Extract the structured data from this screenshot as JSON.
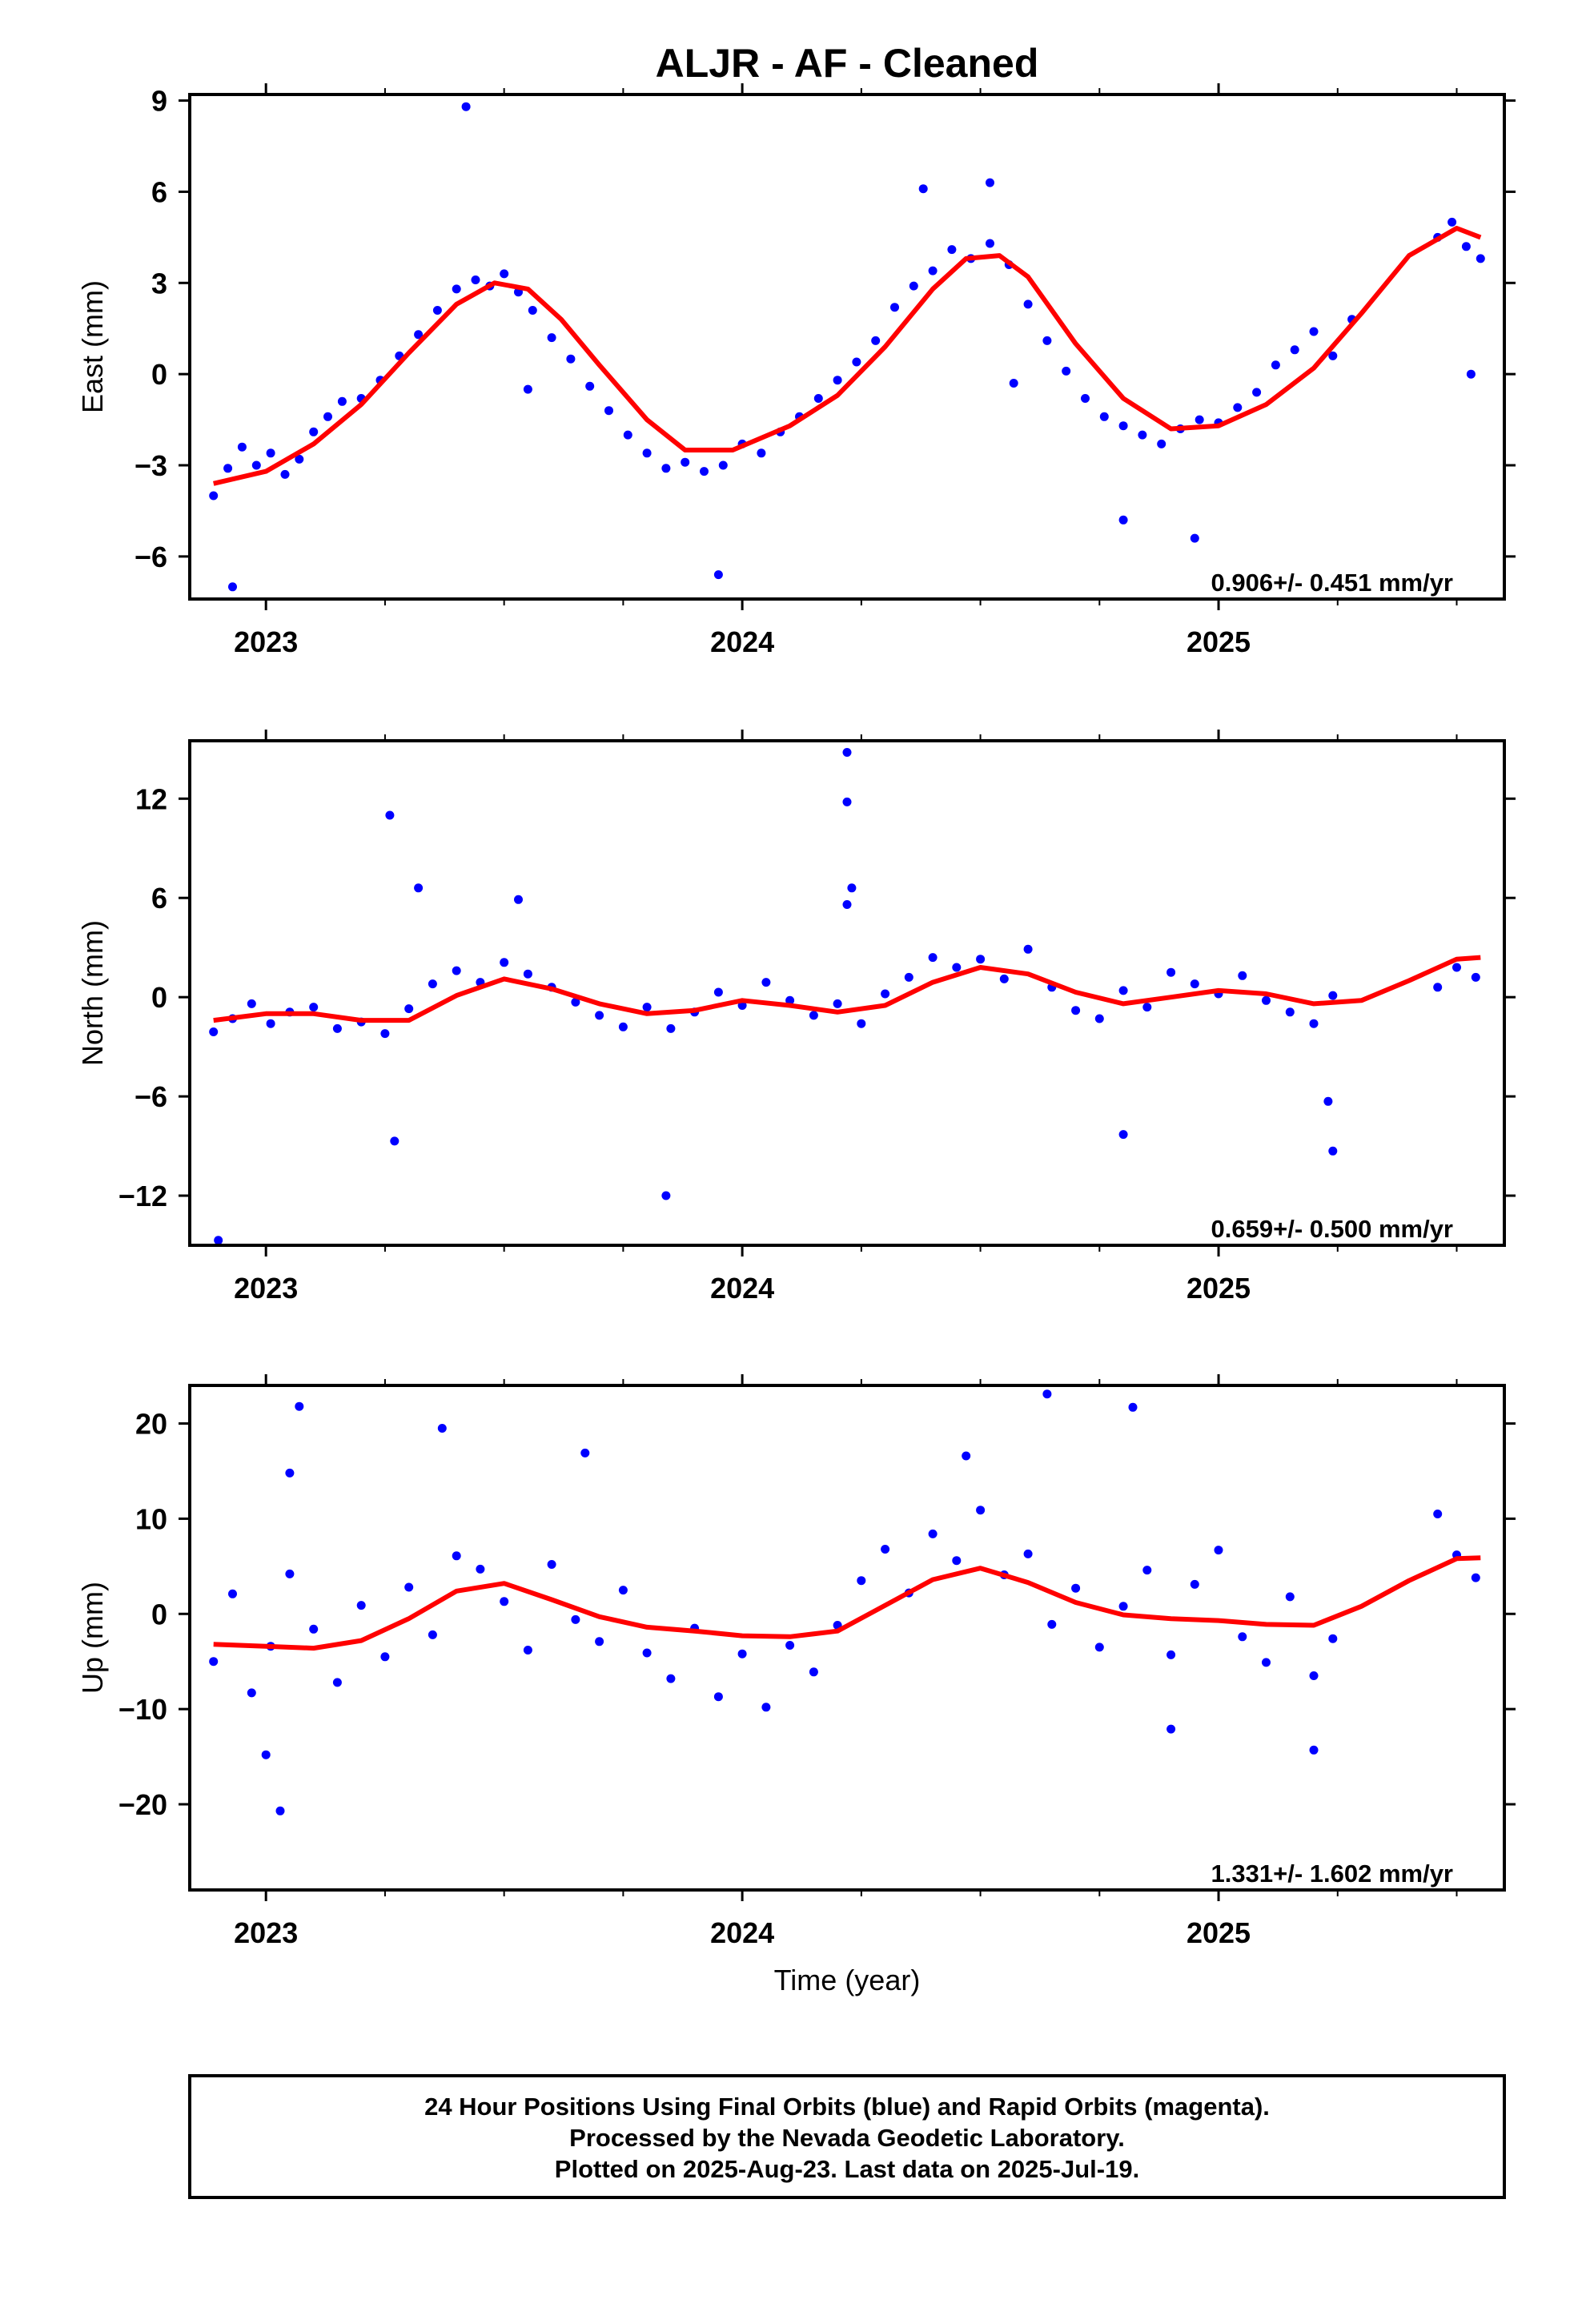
{
  "title": "ALJR  - AF - Cleaned",
  "xlabel": "Time (year)",
  "footer_lines": [
    "24 Hour Positions Using Final Orbits (blue) and Rapid Orbits (magenta).",
    "Processed by the Nevada Geodetic Laboratory.",
    "Plotted on 2025-Aug-23. Last data on 2025-Jul-19."
  ],
  "colors": {
    "points": "#0000ff",
    "fit": "#ff0000",
    "frame": "#000000"
  },
  "chart_data": [
    {
      "type": "scatter",
      "ylabel": "East (mm)",
      "rate_label": "0.906+/- 0.451 mm/yr",
      "x_ticks": [
        "2023",
        "2024",
        "2025"
      ],
      "y_ticks": [
        "9",
        "6",
        "3",
        "0",
        "−3",
        "−6"
      ],
      "xlim": [
        2022.84,
        2025.6
      ],
      "ylim": [
        -7.4,
        9.2
      ],
      "fit_x": [
        2022.89,
        2023.0,
        2023.1,
        2023.2,
        2023.3,
        2023.4,
        2023.48,
        2023.55,
        2023.62,
        2023.7,
        2023.8,
        2023.88,
        2023.98,
        2024.1,
        2024.2,
        2024.3,
        2024.4,
        2024.47,
        2024.54,
        2024.6,
        2024.7,
        2024.8,
        2024.9,
        2025.0,
        2025.1,
        2025.2,
        2025.3,
        2025.4,
        2025.5,
        2025.55
      ],
      "fit_y": [
        -3.6,
        -3.2,
        -2.3,
        -1.0,
        0.7,
        2.3,
        3.0,
        2.8,
        1.8,
        0.3,
        -1.5,
        -2.5,
        -2.5,
        -1.7,
        -0.7,
        0.9,
        2.8,
        3.8,
        3.9,
        3.2,
        1.0,
        -0.8,
        -1.8,
        -1.7,
        -1.0,
        0.2,
        2.0,
        3.9,
        4.8,
        4.5
      ],
      "points": {
        "x": [
          2022.89,
          2022.92,
          2022.95,
          2022.98,
          2023.01,
          2023.04,
          2023.07,
          2023.1,
          2023.13,
          2023.16,
          2023.2,
          2023.24,
          2023.28,
          2023.32,
          2023.36,
          2023.4,
          2023.44,
          2023.47,
          2023.5,
          2023.53,
          2023.56,
          2023.6,
          2023.64,
          2023.68,
          2023.72,
          2023.76,
          2023.8,
          2023.84,
          2023.88,
          2023.92,
          2023.96,
          2024.0,
          2024.04,
          2024.08,
          2024.12,
          2024.16,
          2024.2,
          2024.24,
          2024.28,
          2024.32,
          2024.36,
          2024.4,
          2024.44,
          2024.48,
          2024.52,
          2024.56,
          2024.6,
          2024.64,
          2024.68,
          2024.72,
          2024.76,
          2024.8,
          2024.84,
          2024.88,
          2024.92,
          2024.96,
          2025.0,
          2025.04,
          2025.08,
          2025.12,
          2025.16,
          2025.2,
          2025.24,
          2025.28,
          2025.46,
          2025.49,
          2025.52,
          2025.55,
          2023.42,
          2024.38,
          2024.52,
          2024.8,
          2023.95,
          2022.93,
          2023.55,
          2024.57,
          2024.95,
          2025.53
        ],
        "y": [
          -4.0,
          -3.1,
          -2.4,
          -3.0,
          -2.6,
          -3.3,
          -2.8,
          -1.9,
          -1.4,
          -0.9,
          -0.8,
          -0.2,
          0.6,
          1.3,
          2.1,
          2.8,
          3.1,
          2.9,
          3.3,
          2.7,
          2.1,
          1.2,
          0.5,
          -0.4,
          -1.2,
          -2.0,
          -2.6,
          -3.1,
          -2.9,
          -3.2,
          -3.0,
          -2.3,
          -2.6,
          -1.9,
          -1.4,
          -0.8,
          -0.2,
          0.4,
          1.1,
          2.2,
          2.9,
          3.4,
          4.1,
          3.8,
          4.3,
          3.6,
          2.3,
          1.1,
          0.1,
          -0.8,
          -1.4,
          -1.7,
          -2.0,
          -2.3,
          -1.8,
          -1.5,
          -1.6,
          -1.1,
          -0.6,
          0.3,
          0.8,
          1.4,
          0.6,
          1.8,
          4.5,
          5.0,
          4.2,
          3.8,
          8.8,
          6.1,
          6.3,
          -4.8,
          -6.6,
          -7.0,
          -0.5,
          -0.3,
          -5.4,
          0.0
        ]
      }
    },
    {
      "type": "scatter",
      "ylabel": "North (mm)",
      "rate_label": "0.659+/- 0.500 mm/yr",
      "x_ticks": [
        "2023",
        "2024",
        "2025"
      ],
      "y_ticks": [
        "12",
        "6",
        "0",
        "−6",
        "−12"
      ],
      "xlim": [
        2022.84,
        2025.6
      ],
      "ylim": [
        -15.0,
        15.5
      ],
      "fit_x": [
        2022.89,
        2023.0,
        2023.1,
        2023.2,
        2023.3,
        2023.4,
        2023.5,
        2023.6,
        2023.7,
        2023.8,
        2023.9,
        2024.0,
        2024.1,
        2024.2,
        2024.3,
        2024.4,
        2024.5,
        2024.6,
        2024.7,
        2024.8,
        2024.9,
        2025.0,
        2025.1,
        2025.2,
        2025.3,
        2025.4,
        2025.5,
        2025.55
      ],
      "fit_y": [
        -1.4,
        -1.0,
        -1.0,
        -1.4,
        -1.4,
        0.1,
        1.1,
        0.5,
        -0.4,
        -1.0,
        -0.8,
        -0.2,
        -0.5,
        -0.9,
        -0.5,
        0.9,
        1.8,
        1.4,
        0.3,
        -0.4,
        0.0,
        0.4,
        0.2,
        -0.4,
        -0.2,
        1.0,
        2.3,
        2.4
      ],
      "points": {
        "x": [
          2022.89,
          2022.93,
          2022.97,
          2023.01,
          2023.05,
          2023.1,
          2023.15,
          2023.2,
          2023.25,
          2023.3,
          2023.35,
          2023.4,
          2023.45,
          2023.5,
          2023.55,
          2023.6,
          2023.65,
          2023.7,
          2023.75,
          2023.8,
          2023.85,
          2023.9,
          2023.95,
          2024.0,
          2024.05,
          2024.1,
          2024.15,
          2024.2,
          2024.25,
          2024.3,
          2024.35,
          2024.4,
          2024.45,
          2024.5,
          2024.55,
          2024.6,
          2024.65,
          2024.7,
          2024.75,
          2024.8,
          2024.85,
          2024.9,
          2024.95,
          2025.0,
          2025.05,
          2025.1,
          2025.15,
          2025.2,
          2025.24,
          2025.46,
          2025.5,
          2025.54,
          2023.26,
          2024.22,
          2024.22,
          2024.23,
          2024.22,
          2023.27,
          2023.84,
          2022.9,
          2025.24,
          2025.23,
          2024.8,
          2023.32,
          2023.53
        ],
        "y": [
          -2.1,
          -1.3,
          -0.4,
          -1.6,
          -0.9,
          -0.6,
          -1.9,
          -1.5,
          -2.2,
          -0.7,
          0.8,
          1.6,
          0.9,
          2.1,
          1.4,
          0.6,
          -0.3,
          -1.1,
          -1.8,
          -0.6,
          -1.9,
          -0.9,
          0.3,
          -0.5,
          0.9,
          -0.2,
          -1.1,
          -0.4,
          -1.6,
          0.2,
          1.2,
          2.4,
          1.8,
          2.3,
          1.1,
          2.9,
          0.6,
          -0.8,
          -1.3,
          0.4,
          -0.6,
          1.5,
          0.8,
          0.2,
          1.3,
          -0.2,
          -0.9,
          -1.6,
          0.1,
          0.6,
          1.8,
          1.2,
          11.0,
          14.8,
          11.8,
          6.6,
          5.6,
          -8.7,
          -12.0,
          -14.7,
          -9.3,
          -6.3,
          -8.3,
          6.6,
          5.9
        ]
      }
    },
    {
      "type": "scatter",
      "ylabel": "Up (mm)",
      "rate_label": "1.331+/- 1.602 mm/yr",
      "x_ticks": [
        "2023",
        "2024",
        "2025"
      ],
      "y_ticks": [
        "20",
        "10",
        "0",
        "−10",
        "−20"
      ],
      "xlim": [
        2022.84,
        2025.6
      ],
      "ylim": [
        -29.0,
        24.0
      ],
      "fit_x": [
        2022.89,
        2023.0,
        2023.1,
        2023.2,
        2023.3,
        2023.4,
        2023.5,
        2023.6,
        2023.7,
        2023.8,
        2023.9,
        2024.0,
        2024.1,
        2024.2,
        2024.3,
        2024.4,
        2024.5,
        2024.6,
        2024.7,
        2024.8,
        2024.9,
        2025.0,
        2025.1,
        2025.2,
        2025.3,
        2025.4,
        2025.5,
        2025.55
      ],
      "fit_y": [
        -3.2,
        -3.4,
        -3.6,
        -2.8,
        -0.5,
        2.4,
        3.2,
        1.5,
        -0.3,
        -1.4,
        -1.8,
        -2.3,
        -2.4,
        -1.8,
        0.9,
        3.6,
        4.8,
        3.3,
        1.2,
        -0.1,
        -0.5,
        -0.7,
        -1.1,
        -1.2,
        0.8,
        3.5,
        5.8,
        5.9
      ],
      "points": {
        "x": [
          2022.89,
          2022.93,
          2022.97,
          2023.01,
          2023.05,
          2023.1,
          2023.15,
          2023.2,
          2023.25,
          2023.3,
          2023.35,
          2023.4,
          2023.45,
          2023.5,
          2023.55,
          2023.6,
          2023.65,
          2023.7,
          2023.75,
          2023.8,
          2023.85,
          2023.9,
          2023.95,
          2024.0,
          2024.05,
          2024.1,
          2024.15,
          2024.2,
          2024.25,
          2024.3,
          2024.35,
          2024.4,
          2024.45,
          2024.5,
          2024.55,
          2024.6,
          2024.65,
          2024.7,
          2024.75,
          2024.8,
          2024.85,
          2024.9,
          2024.95,
          2025.0,
          2025.05,
          2025.1,
          2025.15,
          2025.2,
          2025.24,
          2025.46,
          2025.5,
          2025.54,
          2023.07,
          2023.37,
          2023.67,
          2024.64,
          2024.82,
          2024.47,
          2023.03,
          2023.0,
          2024.9,
          2025.2,
          2023.05
        ],
        "y": [
          -5.0,
          2.1,
          -8.3,
          -3.4,
          4.2,
          -1.6,
          -7.2,
          0.9,
          -4.5,
          2.8,
          -2.2,
          6.1,
          4.7,
          1.3,
          -3.8,
          5.2,
          -0.6,
          -2.9,
          2.5,
          -4.1,
          -6.8,
          -1.5,
          -8.7,
          -4.2,
          -9.8,
          -3.3,
          -6.1,
          -1.2,
          3.5,
          6.8,
          2.2,
          8.4,
          5.6,
          10.9,
          4.1,
          6.3,
          -1.1,
          2.7,
          -3.5,
          0.8,
          4.6,
          -4.3,
          3.1,
          6.7,
          -2.4,
          -5.1,
          1.8,
          -6.5,
          -2.6,
          10.5,
          6.2,
          3.8,
          21.8,
          19.5,
          16.9,
          23.1,
          21.7,
          16.6,
          -20.7,
          -14.8,
          -12.1,
          -14.3,
          14.8
        ]
      }
    }
  ]
}
